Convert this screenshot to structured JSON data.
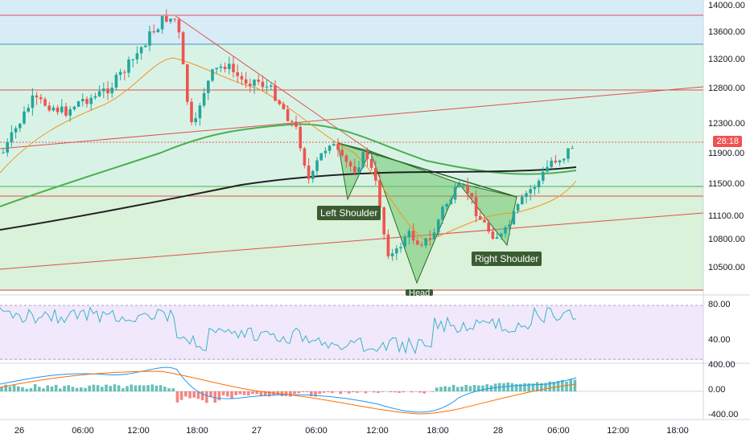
{
  "chart_data": [
    {
      "type": "candlestick",
      "title": "",
      "ylim": [
        10200,
        14000
      ],
      "y_ticks": [
        "14000.00",
        "13600.00",
        "13200.00",
        "12800.00",
        "12300.00",
        "11900.00",
        "11500.00",
        "11100.00",
        "10800.00",
        "10500.00"
      ],
      "last_price_tag": "28:18",
      "annotations": [
        "Left Shoulder",
        "Right Shoulder",
        "Head"
      ],
      "colors": {
        "up": "#26a69a",
        "down": "#ef5350",
        "fast_ma": "#f7931e",
        "slow_ma": "#4caf50",
        "long_ma": "#222222"
      }
    },
    {
      "type": "line",
      "title": "",
      "ylim": [
        20,
        90
      ],
      "y_ticks": [
        "80.00",
        "40.00"
      ],
      "colors": {
        "line": "#3cb4c8",
        "band": "#e9dcf8"
      }
    },
    {
      "type": "bar",
      "title": "",
      "ylim": [
        -450,
        450
      ],
      "y_ticks": [
        "400.00",
        "0.00",
        "-400.00"
      ],
      "colors": {
        "macd": "#2196f3",
        "signal": "#ff6d00",
        "pos": "#26a69a",
        "neg": "#ef5350"
      }
    }
  ],
  "time_axis": [
    "26",
    "06:00",
    "12:00",
    "18:00",
    "27",
    "06:00",
    "12:00",
    "18:00",
    "28",
    "06:00",
    "12:00",
    "18:00"
  ]
}
